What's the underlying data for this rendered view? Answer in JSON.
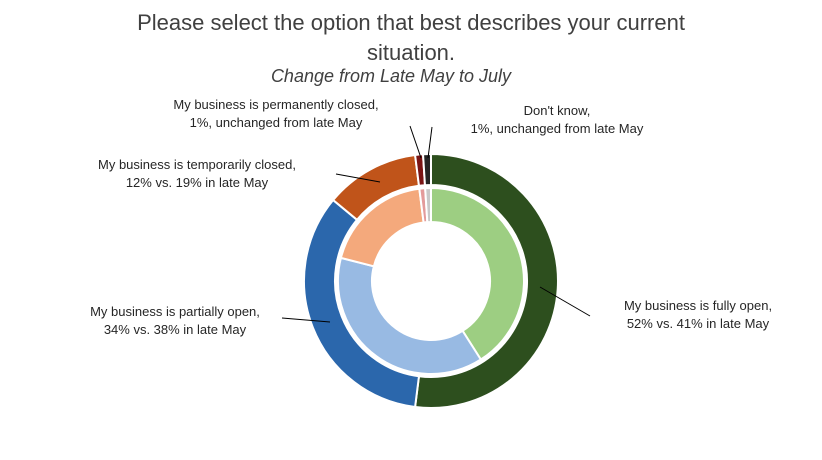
{
  "title_lines": [
    "Please select the option that best describes your current",
    "situation."
  ],
  "subtitle": "Change from Late May to July",
  "chart_data": {
    "type": "pie",
    "subtype": "nested-donut",
    "title": "Please select the option that best describes your current situation.",
    "subtitle": "Change from Late May to July",
    "categories": [
      "My business is fully open",
      "My business is partially open",
      "My business is temporarily closed",
      "My business is permanently closed",
      "Don't know"
    ],
    "series": [
      {
        "ring": "outer",
        "values": [
          52,
          34,
          12,
          1,
          1
        ],
        "colors": [
          "#2d4f1e",
          "#2b67ac",
          "#c0541a",
          "#7a1515",
          "#262626"
        ]
      },
      {
        "ring": "inner",
        "values": [
          41,
          38,
          19,
          1,
          1
        ],
        "colors": [
          "#9dce82",
          "#98bae3",
          "#f4a97c",
          "#e39b9b",
          "#c8c8c8"
        ]
      }
    ],
    "annotations": [
      {
        "key": "fully_open",
        "lines": [
          "My business is fully open,",
          "52% vs. 41% in late May"
        ]
      },
      {
        "key": "partially_open",
        "lines": [
          "My business is partially open,",
          "34% vs. 38% in late May"
        ]
      },
      {
        "key": "temporarily_closed",
        "lines": [
          "My business is temporarily closed,",
          "12% vs. 19% in late May"
        ]
      },
      {
        "key": "permanently_closed",
        "lines": [
          "My business is permanently closed,",
          "1%, unchanged from late May"
        ]
      },
      {
        "key": "dont_know",
        "lines": [
          "Don't know,",
          "1%, unchanged from late May"
        ]
      }
    ]
  }
}
